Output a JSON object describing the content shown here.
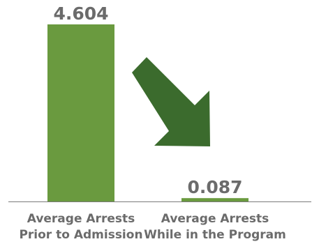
{
  "chart_data": {
    "type": "bar",
    "categories": [
      [
        "Average Arrests",
        "Prior to Admission"
      ],
      [
        "Average Arrests",
        "While in the Program"
      ]
    ],
    "values": [
      4.604,
      0.087
    ],
    "value_labels": [
      "4.604",
      "0.087"
    ],
    "ylim": [
      0,
      4.604
    ],
    "grid": false,
    "legend": "none",
    "annotation": "down-right-arrow"
  },
  "colors": {
    "bar": "#6a9a3f",
    "arrow": "#3b6b2d",
    "baseline": "#7a7a7a",
    "text": "#6b6b6b"
  }
}
